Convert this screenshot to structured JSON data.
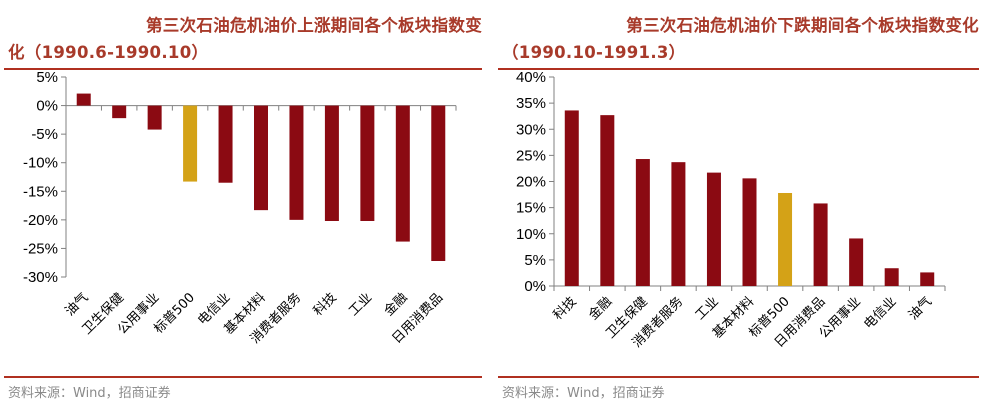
{
  "colors": {
    "title": "#a83a2a",
    "bar": "#8b0a12",
    "highlight": "#d4a217",
    "rule": "#b03020",
    "source": "#8a8a8a"
  },
  "charts": [
    {
      "title_line1": "第三次石油危机油价上涨期间各个板块指数变",
      "title_line2": "化（1990.6-1990.10）",
      "source": "资料来源：Wind，招商证券",
      "chart_data": {
        "type": "bar",
        "title": "第三次石油危机油价上涨期间各个板块指数变化（1990.6-1990.10）",
        "categories": [
          "油气",
          "卫生保健",
          "公用事业",
          "标普500",
          "电信业",
          "基本材料",
          "消费者服务",
          "科技",
          "工业",
          "金融",
          "日用消费品"
        ],
        "values": [
          2.1,
          -2.2,
          -4.2,
          -13.3,
          -13.5,
          -18.3,
          -20.0,
          -20.2,
          -20.2,
          -23.8,
          -27.2
        ],
        "highlight_category": "标普500",
        "ylim": [
          -30,
          5
        ],
        "yticks": [
          5,
          0,
          -5,
          -10,
          -15,
          -20,
          -25,
          -30
        ],
        "ytick_labels": [
          "5%",
          "0%",
          "-5%",
          "-10%",
          "-15%",
          "-20%",
          "-25%",
          "-30%"
        ],
        "xlabel": "",
        "ylabel": ""
      }
    },
    {
      "title_line1": "第三次石油危机油价下跌期间各个板块指数变化",
      "title_line2": "（1990.10-1991.3）",
      "source": "资料来源：Wind，招商证券",
      "chart_data": {
        "type": "bar",
        "title": "第三次石油危机油价下跌期间各个板块指数变化（1990.10-1991.3）",
        "categories": [
          "科技",
          "金融",
          "卫生保健",
          "消费者服务",
          "工业",
          "基本材料",
          "标普500",
          "日用消费品",
          "公用事业",
          "电信业",
          "油气"
        ],
        "values": [
          33.6,
          32.7,
          24.3,
          23.7,
          21.7,
          20.6,
          17.8,
          15.8,
          9.1,
          3.4,
          2.6
        ],
        "highlight_category": "标普500",
        "ylim": [
          0,
          40
        ],
        "yticks": [
          40,
          35,
          30,
          25,
          20,
          15,
          10,
          5,
          0
        ],
        "ytick_labels": [
          "40%",
          "35%",
          "30%",
          "25%",
          "20%",
          "15%",
          "10%",
          "5%",
          "0%"
        ],
        "xlabel": "",
        "ylabel": ""
      }
    }
  ]
}
